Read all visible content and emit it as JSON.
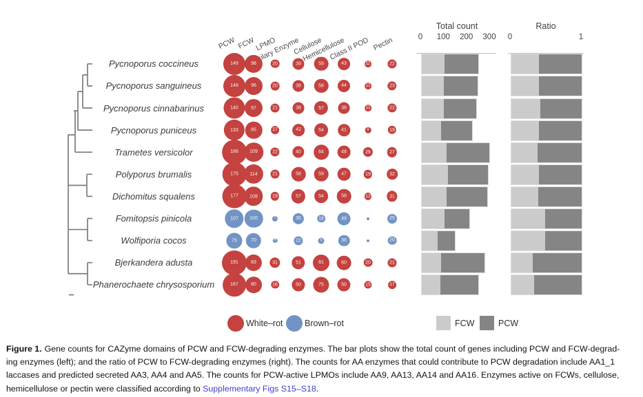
{
  "figure": {
    "column_headers": [
      "PCW",
      "FCW",
      "LPMO",
      "Auxilary Enzyme",
      "Cellulose",
      "Hemicellulose",
      "Class II POD",
      "Pectin"
    ],
    "species": [
      {
        "name": "Pycnoporus coccineus",
        "rot": "white-rot",
        "counts": [
          149,
          98,
          20,
          39,
          59,
          43,
          11,
          22
        ]
      },
      {
        "name": "Pycnoporus sanguineus",
        "rot": "white-rot",
        "counts": [
          148,
          96,
          20,
          39,
          58,
          44,
          11,
          23
        ]
      },
      {
        "name": "Pycnoporus cinnabarinus",
        "rot": "white-rot",
        "counts": [
          140,
          97,
          21,
          38,
          57,
          38,
          11,
          22
        ]
      },
      {
        "name": "Pycnoporus puniceus",
        "rot": "white-rot",
        "counts": [
          133,
          85,
          17,
          42,
          54,
          41,
          8,
          19
        ]
      },
      {
        "name": "Trametes versicolor",
        "rot": "white-rot",
        "counts": [
          186,
          109,
          22,
          40,
          64,
          48,
          26,
          27
        ]
      },
      {
        "name": "Polyporus brumalis",
        "rot": "white-rot",
        "counts": [
          175,
          114,
          21,
          58,
          59,
          47,
          19,
          32
        ]
      },
      {
        "name": "Dichomitus squalens",
        "rot": "white-rot",
        "counts": [
          177,
          108,
          19,
          57,
          54,
          58,
          12,
          31
        ]
      },
      {
        "name": "Fomitopsis pinicola",
        "rot": "brown-rot",
        "counts": [
          107,
          100,
          7,
          35,
          16,
          49,
          1,
          25
        ]
      },
      {
        "name": "Wolfiporia cocos",
        "rot": "brown-rot",
        "counts": [
          75,
          70,
          4,
          22,
          9,
          36,
          1,
          20
        ]
      },
      {
        "name": "Bjerkandera adusta",
        "rot": "white-rot",
        "counts": [
          191,
          83,
          31,
          51,
          81,
          60,
          20,
          21
        ]
      },
      {
        "name": "Phanerochaete chrysosporium",
        "rot": "white-rot",
        "counts": [
          167,
          80,
          16,
          50,
          75,
          50,
          15,
          17
        ]
      }
    ],
    "count_axis": {
      "title": "Total count",
      "ticks": [
        0,
        100,
        200,
        300
      ],
      "max": 300
    },
    "ratio_axis": {
      "title": "Ratio",
      "ticks": [
        0,
        1
      ],
      "max": 1
    },
    "legend": {
      "white_rot": "White–rot",
      "brown_rot": "Brown–rot",
      "fcw": "FCW",
      "pcw": "PCW"
    },
    "colors": {
      "white_rot": "#C4423F",
      "brown_rot": "#7293C5",
      "fcw_bar": "#CBCBCB",
      "pcw_bar": "#858585",
      "tree": "#7C7C7C",
      "link": "#3F3FCE"
    }
  },
  "caption": {
    "label": "Figure 1.",
    "lines": [
      "Gene counts for CAZyme domains of PCW and FCW-degrading enzymes. The bar plots show the total count of genes including PCW and FCW-degrad-",
      "ing enzymes (left); and the ratio of PCW to FCW-degrading enzymes (right). The counts for AA enzymes that could contribute to PCW degradation include AA1_1",
      "laccases and predicted secreted AA3, AA4 and AA5. The counts for PCW-active LPMOs include AA9, AA13, AA14 and AA16. Enzymes active on FCWs, cellulose,"
    ],
    "line4_prefix": "hemicellulose or pectin were classified according to ",
    "link_text": "Supplementary Figs S15–S18",
    "line4_suffix": "."
  },
  "chart_data": [
    {
      "type": "scatter",
      "subtype": "bubble-matrix",
      "title": "Gene counts for CAZyme domains of PCW and FCW-degrading enzymes",
      "x_categories": [
        "PCW",
        "FCW",
        "LPMO",
        "Auxilary Enzyme",
        "Cellulose",
        "Hemicellulose",
        "Class II POD",
        "Pectin"
      ],
      "y_categories": [
        "Pycnoporus coccineus",
        "Pycnoporus sanguineus",
        "Pycnoporus cinnabarinus",
        "Pycnoporus puniceus",
        "Trametes versicolor",
        "Polyporus brumalis",
        "Dichomitus squalens",
        "Fomitopsis pinicola",
        "Wolfiporia cocos",
        "Bjerkandera adusta",
        "Phanerochaete chrysosporium"
      ],
      "values": [
        [
          149,
          98,
          20,
          39,
          59,
          43,
          11,
          22
        ],
        [
          148,
          96,
          20,
          39,
          58,
          44,
          11,
          23
        ],
        [
          140,
          97,
          21,
          38,
          57,
          38,
          11,
          22
        ],
        [
          133,
          85,
          17,
          42,
          54,
          41,
          8,
          19
        ],
        [
          186,
          109,
          22,
          40,
          64,
          48,
          26,
          27
        ],
        [
          175,
          114,
          21,
          58,
          59,
          47,
          19,
          32
        ],
        [
          177,
          108,
          19,
          57,
          54,
          58,
          12,
          31
        ],
        [
          107,
          100,
          7,
          35,
          16,
          49,
          1,
          25
        ],
        [
          75,
          70,
          4,
          22,
          9,
          36,
          1,
          20
        ],
        [
          191,
          83,
          31,
          51,
          81,
          60,
          20,
          21
        ],
        [
          167,
          80,
          16,
          50,
          75,
          50,
          15,
          17
        ]
      ],
      "color_by": {
        "white-rot": "#C4423F",
        "brown-rot": "#7293C5"
      },
      "row_types": [
        "white-rot",
        "white-rot",
        "white-rot",
        "white-rot",
        "white-rot",
        "white-rot",
        "white-rot",
        "brown-rot",
        "brown-rot",
        "white-rot",
        "white-rot"
      ],
      "legend": [
        "White–rot",
        "Brown–rot"
      ]
    },
    {
      "type": "bar",
      "subtype": "stacked-horizontal",
      "title": "Total count",
      "categories": [
        "Pycnoporus coccineus",
        "Pycnoporus sanguineus",
        "Pycnoporus cinnabarinus",
        "Pycnoporus puniceus",
        "Trametes versicolor",
        "Polyporus brumalis",
        "Dichomitus squalens",
        "Fomitopsis pinicola",
        "Wolfiporia cocos",
        "Bjerkandera adusta",
        "Phanerochaete chrysosporium"
      ],
      "series": [
        {
          "name": "FCW",
          "values": [
            98,
            96,
            97,
            85,
            109,
            114,
            108,
            100,
            70,
            83,
            80
          ]
        },
        {
          "name": "PCW",
          "values": [
            149,
            148,
            140,
            133,
            186,
            175,
            177,
            107,
            75,
            191,
            167
          ]
        }
      ],
      "totals": [
        247,
        244,
        237,
        218,
        295,
        289,
        285,
        207,
        145,
        274,
        247
      ],
      "xlim": [
        0,
        300
      ],
      "xticks": [
        0,
        100,
        200,
        300
      ],
      "legend_position": "bottom"
    },
    {
      "type": "bar",
      "subtype": "100%-stacked-horizontal",
      "title": "Ratio",
      "categories": [
        "Pycnoporus coccineus",
        "Pycnoporus sanguineus",
        "Pycnoporus cinnabarinus",
        "Pycnoporus puniceus",
        "Trametes versicolor",
        "Polyporus brumalis",
        "Dichomitus squalens",
        "Fomitopsis pinicola",
        "Wolfiporia cocos",
        "Bjerkandera adusta",
        "Phanerochaete chrysosporium"
      ],
      "series": [
        {
          "name": "FCW",
          "values": [
            0.4,
            0.39,
            0.41,
            0.39,
            0.37,
            0.39,
            0.38,
            0.48,
            0.48,
            0.3,
            0.32
          ]
        },
        {
          "name": "PCW",
          "values": [
            0.6,
            0.61,
            0.59,
            0.61,
            0.63,
            0.61,
            0.62,
            0.52,
            0.52,
            0.7,
            0.68
          ]
        }
      ],
      "xlim": [
        0,
        1
      ],
      "xticks": [
        0,
        1
      ]
    }
  ]
}
